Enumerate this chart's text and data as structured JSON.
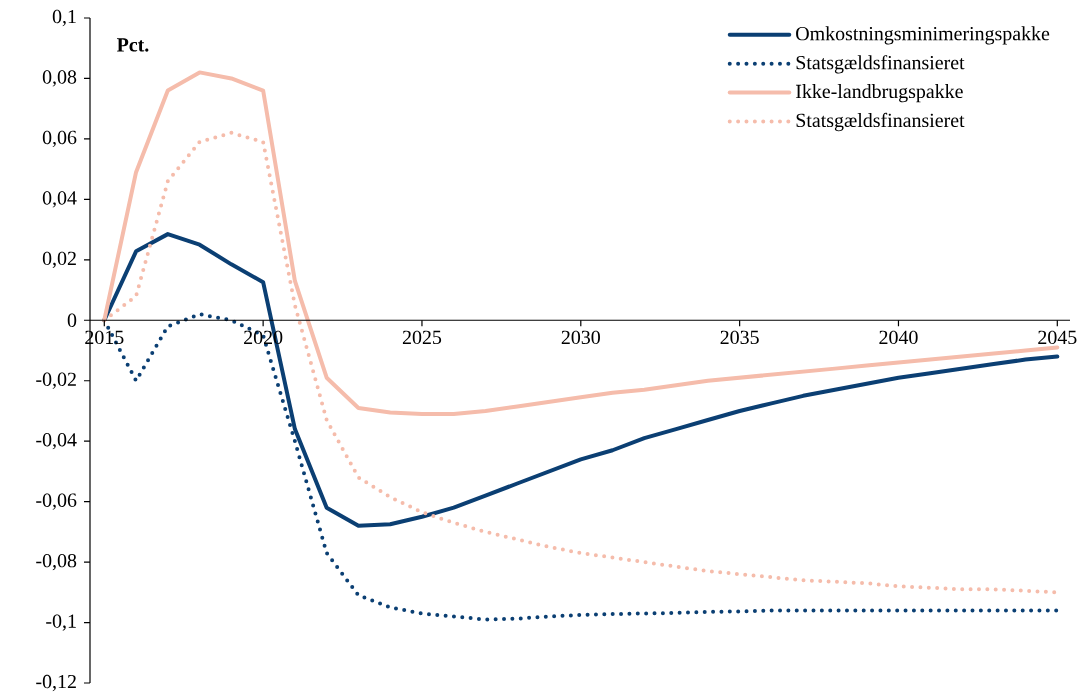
{
  "chart_data": {
    "type": "line",
    "ylabel": "Pct.",
    "x": [
      2015,
      2016,
      2017,
      2018,
      2019,
      2020,
      2021,
      2022,
      2023,
      2024,
      2025,
      2026,
      2027,
      2028,
      2029,
      2030,
      2031,
      2032,
      2033,
      2034,
      2035,
      2036,
      2037,
      2038,
      2039,
      2040,
      2041,
      2042,
      2043,
      2044,
      2045
    ],
    "xlim": [
      2014.55,
      2045.4
    ],
    "ylim": [
      -0.12,
      0.1
    ],
    "xticks": [
      2015,
      2020,
      2025,
      2030,
      2035,
      2040,
      2045
    ],
    "yticks": [
      {
        "value": -0.12,
        "label": "-0,12"
      },
      {
        "value": -0.1,
        "label": "-0,1"
      },
      {
        "value": -0.08,
        "label": "-0,08"
      },
      {
        "value": -0.06,
        "label": "-0,06"
      },
      {
        "value": -0.04,
        "label": "-0,04"
      },
      {
        "value": -0.02,
        "label": "-0,02"
      },
      0,
      {
        "value": 0.02,
        "label": "0,02"
      },
      {
        "value": 0.04,
        "label": "0,04"
      },
      {
        "value": 0.06,
        "label": "0,06"
      },
      {
        "value": 0.08,
        "label": "0,08"
      },
      {
        "value": 0.1,
        "label": "0,1"
      }
    ],
    "legend": "top right",
    "series": [
      {
        "name": "Omkostningsminimeringspakke",
        "color": "#0b3f73",
        "line_style": "solid",
        "values": [
          0,
          0.0228,
          0.0285,
          0.025,
          0.0185,
          0.0126,
          -0.036,
          -0.062,
          -0.068,
          -0.0675,
          -0.065,
          -0.062,
          -0.058,
          -0.054,
          -0.05,
          -0.046,
          -0.043,
          -0.039,
          -0.036,
          -0.033,
          -0.03,
          -0.0275,
          -0.025,
          -0.023,
          -0.021,
          -0.019,
          -0.0175,
          -0.016,
          -0.0145,
          -0.013,
          -0.012
        ]
      },
      {
        "name": "Statsgældsfinansieret",
        "color": "#0b3f73",
        "line_style": "dotted",
        "values": [
          0,
          -0.02,
          -0.002,
          0.002,
          0,
          -0.005,
          -0.04,
          -0.077,
          -0.091,
          -0.095,
          -0.097,
          -0.098,
          -0.099,
          -0.0987,
          -0.098,
          -0.0975,
          -0.0972,
          -0.097,
          -0.0968,
          -0.0965,
          -0.0963,
          -0.096,
          -0.096,
          -0.096,
          -0.096,
          -0.096,
          -0.096,
          -0.096,
          -0.096,
          -0.096,
          -0.096
        ]
      },
      {
        "name": "Ikke-landbrugspakke",
        "color": "#f5bcab",
        "line_style": "solid",
        "values": [
          0,
          0.049,
          0.076,
          0.082,
          0.08,
          0.076,
          0.013,
          -0.019,
          -0.029,
          -0.0305,
          -0.031,
          -0.031,
          -0.03,
          -0.0285,
          -0.027,
          -0.0255,
          -0.024,
          -0.023,
          -0.0215,
          -0.02,
          -0.019,
          -0.018,
          -0.017,
          -0.016,
          -0.015,
          -0.014,
          -0.013,
          -0.012,
          -0.011,
          -0.01,
          -0.009
        ]
      },
      {
        "name": "Statsgældsfinansieret",
        "color": "#f5bcab",
        "line_style": "dotted",
        "values": [
          0,
          0.008,
          0.046,
          0.059,
          0.062,
          0.059,
          0.005,
          -0.033,
          -0.052,
          -0.0585,
          -0.0635,
          -0.067,
          -0.07,
          -0.0725,
          -0.075,
          -0.077,
          -0.0785,
          -0.08,
          -0.0815,
          -0.083,
          -0.084,
          -0.085,
          -0.086,
          -0.0865,
          -0.087,
          -0.088,
          -0.0885,
          -0.089,
          -0.089,
          -0.0895,
          -0.09
        ]
      }
    ]
  }
}
